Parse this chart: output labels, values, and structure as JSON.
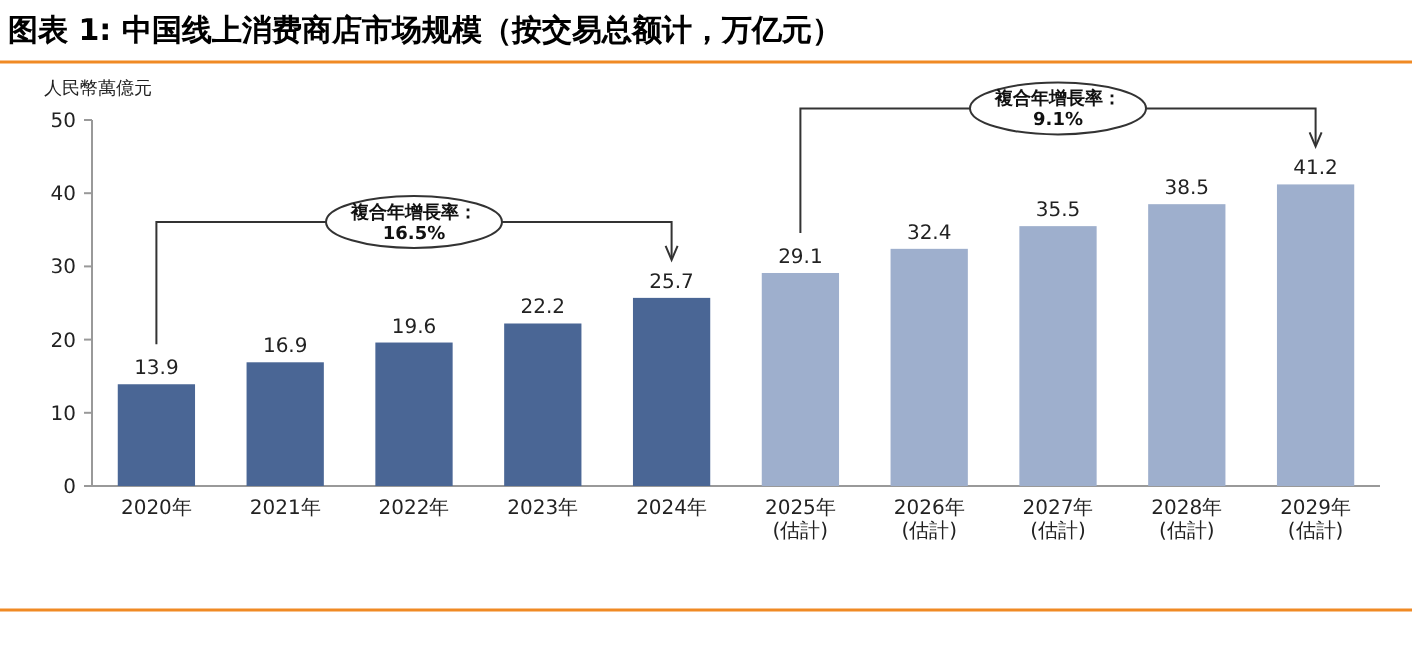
{
  "chart_data": {
    "type": "bar",
    "title": "图表 1: 中国线上消费商店市场规模（按交易总额计，万亿元）",
    "ylabel": "人民幣萬億元",
    "categories": [
      "2020年",
      "2021年",
      "2022年",
      "2023年",
      "2024年",
      "2025年\n(估計)",
      "2026年\n(估計)",
      "2027年\n(估計)",
      "2028年\n(估計)",
      "2029年\n(估計)"
    ],
    "values": [
      13.9,
      16.9,
      19.6,
      22.2,
      25.7,
      29.1,
      32.4,
      35.5,
      38.5,
      41.2
    ],
    "colors": [
      "#4a6695",
      "#4a6695",
      "#4a6695",
      "#4a6695",
      "#4a6695",
      "#9eafcd",
      "#9eafcd",
      "#9eafcd",
      "#9eafcd",
      "#9eafcd"
    ],
    "ylim": [
      0,
      50
    ],
    "yticks": [
      0,
      10,
      20,
      30,
      40,
      50
    ],
    "data_labels": true,
    "grid": false,
    "annotations": [
      "複合年增長率：\n16.5%",
      "複合年增長率：\n9.1%"
    ]
  }
}
